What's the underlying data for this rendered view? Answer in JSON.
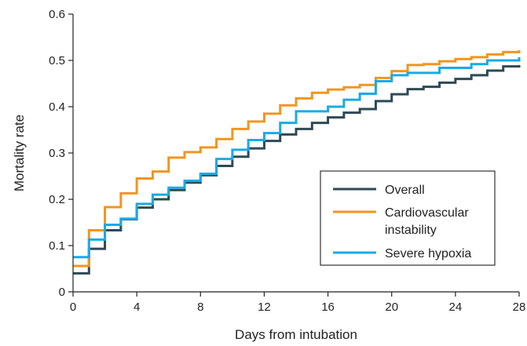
{
  "chart_data": {
    "type": "line",
    "title": "",
    "xlabel": "Days from intubation",
    "ylabel": "Mortality rate",
    "xlim": [
      0,
      28
    ],
    "ylim": [
      0,
      0.6
    ],
    "xticks": [
      "0",
      "4",
      "8",
      "12",
      "16",
      "20",
      "24",
      "28"
    ],
    "yticks": [
      "0",
      "0.1",
      "0.2",
      "0.3",
      "0.4",
      "0.5",
      "0.6"
    ],
    "grid": false,
    "legend_position": "bottom-right",
    "step": true,
    "x": [
      0,
      1,
      2,
      3,
      4,
      5,
      6,
      7,
      8,
      9,
      10,
      11,
      12,
      13,
      14,
      15,
      16,
      17,
      18,
      19,
      20,
      21,
      22,
      23,
      24,
      25,
      26,
      27,
      28
    ],
    "series": [
      {
        "name": "Overall",
        "color": "#2e4a55",
        "values": [
          0.04,
          0.093,
          0.133,
          0.157,
          0.182,
          0.2,
          0.22,
          0.236,
          0.252,
          0.272,
          0.292,
          0.31,
          0.326,
          0.34,
          0.352,
          0.365,
          0.377,
          0.387,
          0.395,
          0.412,
          0.427,
          0.438,
          0.443,
          0.452,
          0.46,
          0.468,
          0.478,
          0.487,
          0.49
        ]
      },
      {
        "name": "Cardiovascular instability",
        "color": "#f0961e",
        "values": [
          0.056,
          0.133,
          0.183,
          0.213,
          0.245,
          0.26,
          0.29,
          0.302,
          0.312,
          0.33,
          0.352,
          0.368,
          0.385,
          0.403,
          0.418,
          0.43,
          0.437,
          0.442,
          0.447,
          0.462,
          0.477,
          0.49,
          0.492,
          0.498,
          0.503,
          0.507,
          0.513,
          0.518,
          0.522
        ]
      },
      {
        "name": "Severe hypoxia",
        "color": "#1aaae6",
        "values": [
          0.075,
          0.113,
          0.145,
          0.158,
          0.19,
          0.21,
          0.225,
          0.24,
          0.255,
          0.287,
          0.307,
          0.328,
          0.343,
          0.365,
          0.39,
          0.39,
          0.4,
          0.415,
          0.428,
          0.455,
          0.468,
          0.473,
          0.473,
          0.484,
          0.484,
          0.492,
          0.5,
          0.5,
          0.507
        ]
      }
    ]
  }
}
